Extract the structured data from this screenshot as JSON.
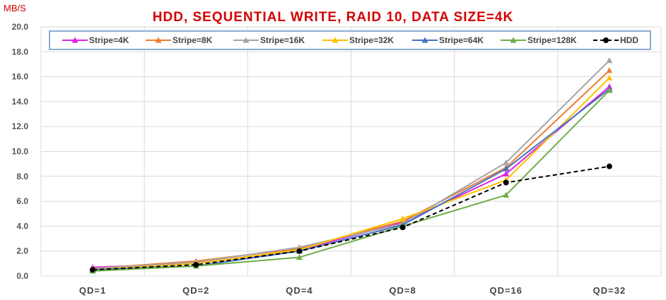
{
  "chart_data": {
    "type": "line",
    "title": "HDD, SEQUENTIAL WRITE, RAID 10, DATA SIZE=4K",
    "ylabel": "MB/S",
    "xlabel": "",
    "categories": [
      "QD=1",
      "QD=2",
      "QD=4",
      "QD=8",
      "QD=16",
      "QD=32"
    ],
    "ylim": [
      0,
      20
    ],
    "ytick_step": 2,
    "ytick_labels": [
      "0.0",
      "2.0",
      "4.0",
      "6.0",
      "8.0",
      "10.0",
      "12.0",
      "14.0",
      "16.0",
      "18.0",
      "20.0"
    ],
    "grid": true,
    "legend_position": "top",
    "series": [
      {
        "name": "Stripe=4K",
        "color": "#e020e0",
        "marker": "triangle",
        "dashed": false,
        "values": [
          0.7,
          1.0,
          2.1,
          4.3,
          8.2,
          15.2
        ]
      },
      {
        "name": "Stripe=8K",
        "color": "#ed7d31",
        "marker": "triangle",
        "dashed": false,
        "values": [
          0.6,
          1.2,
          2.2,
          4.4,
          8.7,
          16.5
        ]
      },
      {
        "name": "Stripe=16K",
        "color": "#a5a5a5",
        "marker": "triangle",
        "dashed": false,
        "values": [
          0.6,
          1.1,
          2.3,
          4.2,
          9.1,
          17.3
        ]
      },
      {
        "name": "Stripe=32K",
        "color": "#ffc000",
        "marker": "triangle",
        "dashed": false,
        "values": [
          0.5,
          1.0,
          2.1,
          4.6,
          7.7,
          15.9
        ]
      },
      {
        "name": "Stripe=64K",
        "color": "#4472c4",
        "marker": "triangle",
        "dashed": false,
        "values": [
          0.5,
          0.8,
          2.0,
          4.1,
          8.6,
          15.0
        ]
      },
      {
        "name": "Stripe=128K",
        "color": "#70ad47",
        "marker": "triangle",
        "dashed": false,
        "values": [
          0.4,
          0.8,
          1.5,
          4.0,
          6.5,
          14.9
        ]
      },
      {
        "name": "HDD",
        "color": "#000000",
        "marker": "circle",
        "dashed": true,
        "values": [
          0.5,
          0.9,
          2.0,
          3.9,
          7.5,
          8.8
        ]
      }
    ]
  },
  "colors": {
    "title": "#d40000",
    "unit": "#d40000",
    "grid": "#d9d9d9",
    "legend_border": "#4f81bd"
  }
}
